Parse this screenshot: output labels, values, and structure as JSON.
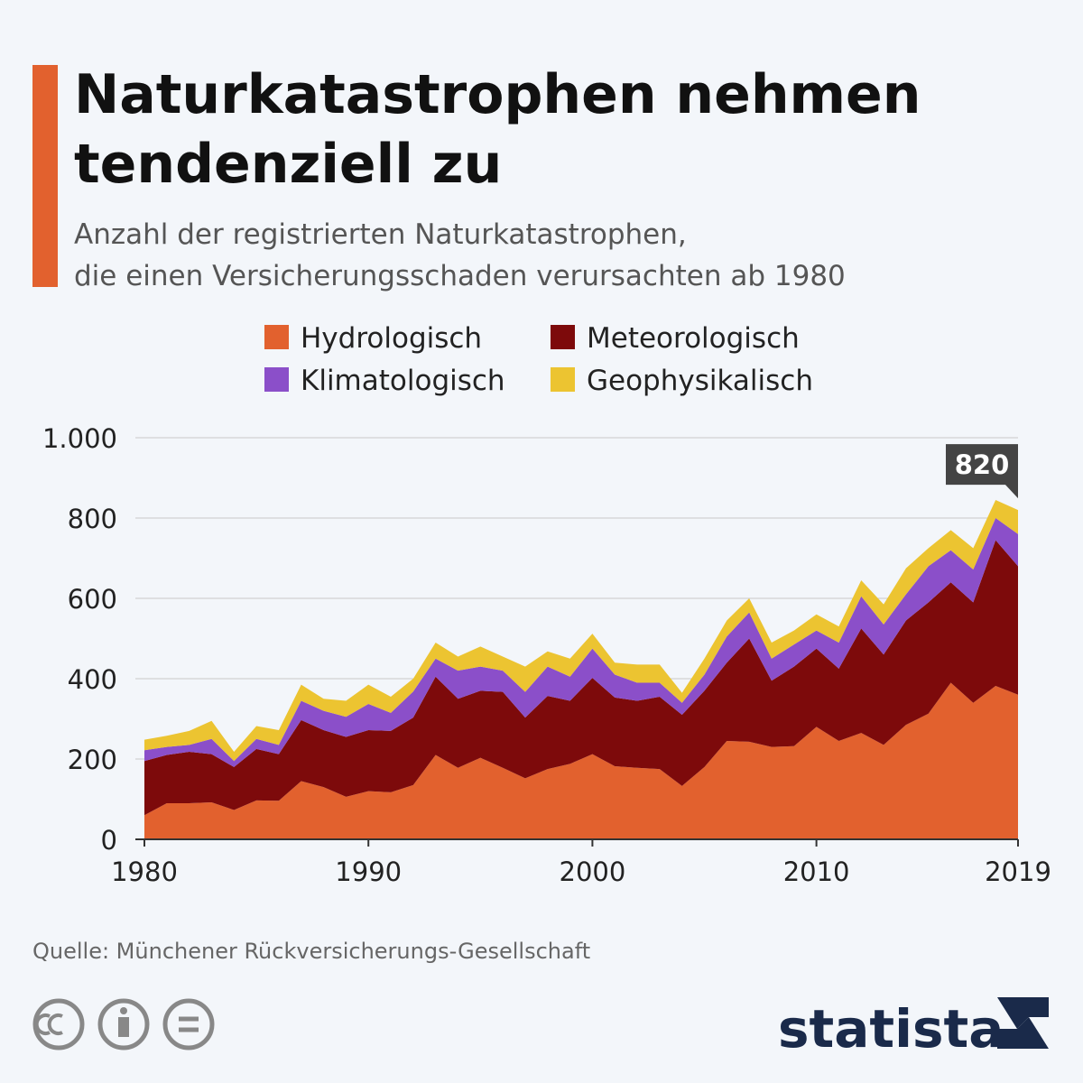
{
  "chart_data": {
    "type": "stacked_area",
    "title": [
      "Naturkatastrophen nehmen",
      "tendenziell zu"
    ],
    "subtitle": [
      "Anzahl der registrierten Naturkatastrophen,",
      "die einen Versicherungsschaden verursachten ab 1980"
    ],
    "x": [
      1980,
      1981,
      1982,
      1983,
      1984,
      1985,
      1986,
      1987,
      1988,
      1989,
      1990,
      1991,
      1992,
      1993,
      1994,
      1995,
      1996,
      1997,
      1998,
      1999,
      2000,
      2001,
      2002,
      2003,
      2004,
      2005,
      2006,
      2007,
      2008,
      2009,
      2010,
      2011,
      2012,
      2013,
      2014,
      2015,
      2016,
      2017,
      2018,
      2019
    ],
    "series": [
      {
        "name": "Hydrologisch",
        "color": "#e2612e",
        "values": [
          60,
          90,
          90,
          92,
          73,
          97,
          96,
          145,
          130,
          106,
          120,
          117,
          135,
          210,
          178,
          203,
          178,
          152,
          175,
          188,
          212,
          182,
          178,
          175,
          133,
          180,
          245,
          243,
          230,
          232,
          280,
          245,
          265,
          235,
          285,
          313,
          390,
          340,
          382,
          360
        ]
      },
      {
        "name": "Meteorologisch",
        "color": "#7d0a0b",
        "values": [
          135,
          120,
          128,
          120,
          107,
          128,
          116,
          152,
          142,
          149,
          152,
          153,
          168,
          195,
          172,
          167,
          189,
          151,
          182,
          157,
          190,
          171,
          167,
          180,
          177,
          190,
          195,
          257,
          165,
          198,
          195,
          180,
          260,
          225,
          260,
          277,
          250,
          250,
          363,
          320
        ]
      },
      {
        "name": "Klimatologisch",
        "color": "#8b4fc9",
        "values": [
          27,
          20,
          17,
          38,
          15,
          25,
          23,
          48,
          48,
          50,
          65,
          45,
          65,
          45,
          70,
          60,
          53,
          64,
          73,
          60,
          73,
          57,
          45,
          35,
          30,
          40,
          65,
          65,
          55,
          55,
          45,
          65,
          80,
          75,
          65,
          90,
          80,
          82,
          55,
          80
        ]
      },
      {
        "name": "Geophysikalisch",
        "color": "#ecc431",
        "values": [
          26,
          28,
          35,
          45,
          23,
          32,
          37,
          40,
          30,
          40,
          48,
          40,
          32,
          40,
          35,
          50,
          35,
          63,
          38,
          45,
          37,
          30,
          45,
          45,
          25,
          40,
          40,
          35,
          40,
          35,
          40,
          40,
          40,
          50,
          65,
          45,
          50,
          53,
          45,
          60
        ]
      }
    ],
    "xlim": [
      1980,
      2019
    ],
    "xticks": [
      1980,
      1990,
      2000,
      2010,
      2019
    ],
    "ylim": [
      0,
      1000
    ],
    "yticks": [
      0,
      200,
      400,
      600,
      800,
      {
        "value": 1000,
        "label": "1.000"
      }
    ],
    "grid": true,
    "annotations": [
      {
        "x": 2019,
        "y": 820,
        "text": "820"
      }
    ]
  },
  "source": "Quelle: Münchener Rückversicherungs-Gesellschaft",
  "brand": "statista"
}
